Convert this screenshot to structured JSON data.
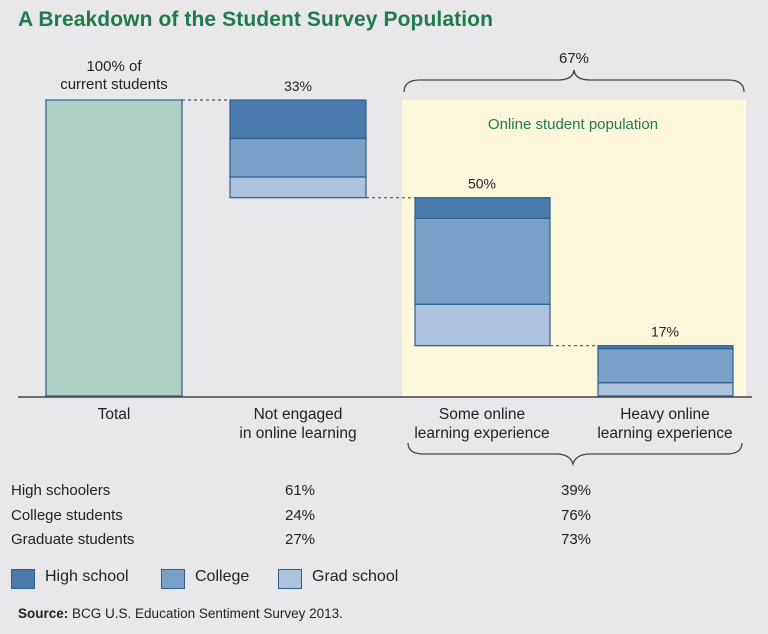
{
  "title": "A Breakdown of the Student Survey Population",
  "chart_data": {
    "type": "waterfall-stacked-bar",
    "title": "A Breakdown of the Student Survey Population",
    "total_label": [
      "100% of",
      "current students"
    ],
    "bracket_label": "67%",
    "highlight_label": "Online student population",
    "categories": [
      {
        "name": "Total",
        "label_lines": [
          "Total"
        ],
        "value_label": "",
        "base": 0,
        "segments": [
          {
            "series": "Total",
            "value": 100
          }
        ]
      },
      {
        "name": "Not engaged in online learning",
        "label_lines": [
          "Not engaged",
          "in online learning"
        ],
        "value_label": "33%",
        "base": 67,
        "segments": [
          {
            "series": "High school",
            "value": 13
          },
          {
            "series": "College",
            "value": 13
          },
          {
            "series": "Grad school",
            "value": 7
          }
        ]
      },
      {
        "name": "Some online learning experience",
        "label_lines": [
          "Some online",
          "learning experience"
        ],
        "value_label": "50%",
        "base": 17,
        "segments": [
          {
            "series": "High school",
            "value": 7
          },
          {
            "series": "College",
            "value": 29
          },
          {
            "series": "Grad school",
            "value": 14
          }
        ]
      },
      {
        "name": "Heavy online learning experience",
        "label_lines": [
          "Heavy online",
          "learning experience"
        ],
        "value_label": "17%",
        "base": 0,
        "segments": [
          {
            "series": "High school",
            "value": 1
          },
          {
            "series": "College",
            "value": 11.5
          },
          {
            "series": "Grad school",
            "value": 4.5
          }
        ]
      }
    ],
    "ylim": [
      0,
      100
    ],
    "colors": {
      "Total": "#aecfc4",
      "High school": "#4a7aac",
      "College": "#7aa0c8",
      "Grad school": "#adc2dc",
      "highlight": "#fdf7dc",
      "border": "#2a5f8f",
      "total_border": "#2a5f8f"
    }
  },
  "table": {
    "rows": [
      {
        "label": "High schoolers",
        "not_engaged": "61%",
        "online": "39%"
      },
      {
        "label": "College students",
        "not_engaged": "24%",
        "online": "76%"
      },
      {
        "label": "Graduate students",
        "not_engaged": "27%",
        "online": "73%"
      }
    ]
  },
  "legend": [
    {
      "label": "High school",
      "color": "#4a7aac"
    },
    {
      "label": "College",
      "color": "#7aa0c8"
    },
    {
      "label": "Grad school",
      "color": "#adc2dc"
    }
  ],
  "source": {
    "prefix": "Source:",
    "text": "BCG U.S. Education Sentiment Survey 2013."
  }
}
